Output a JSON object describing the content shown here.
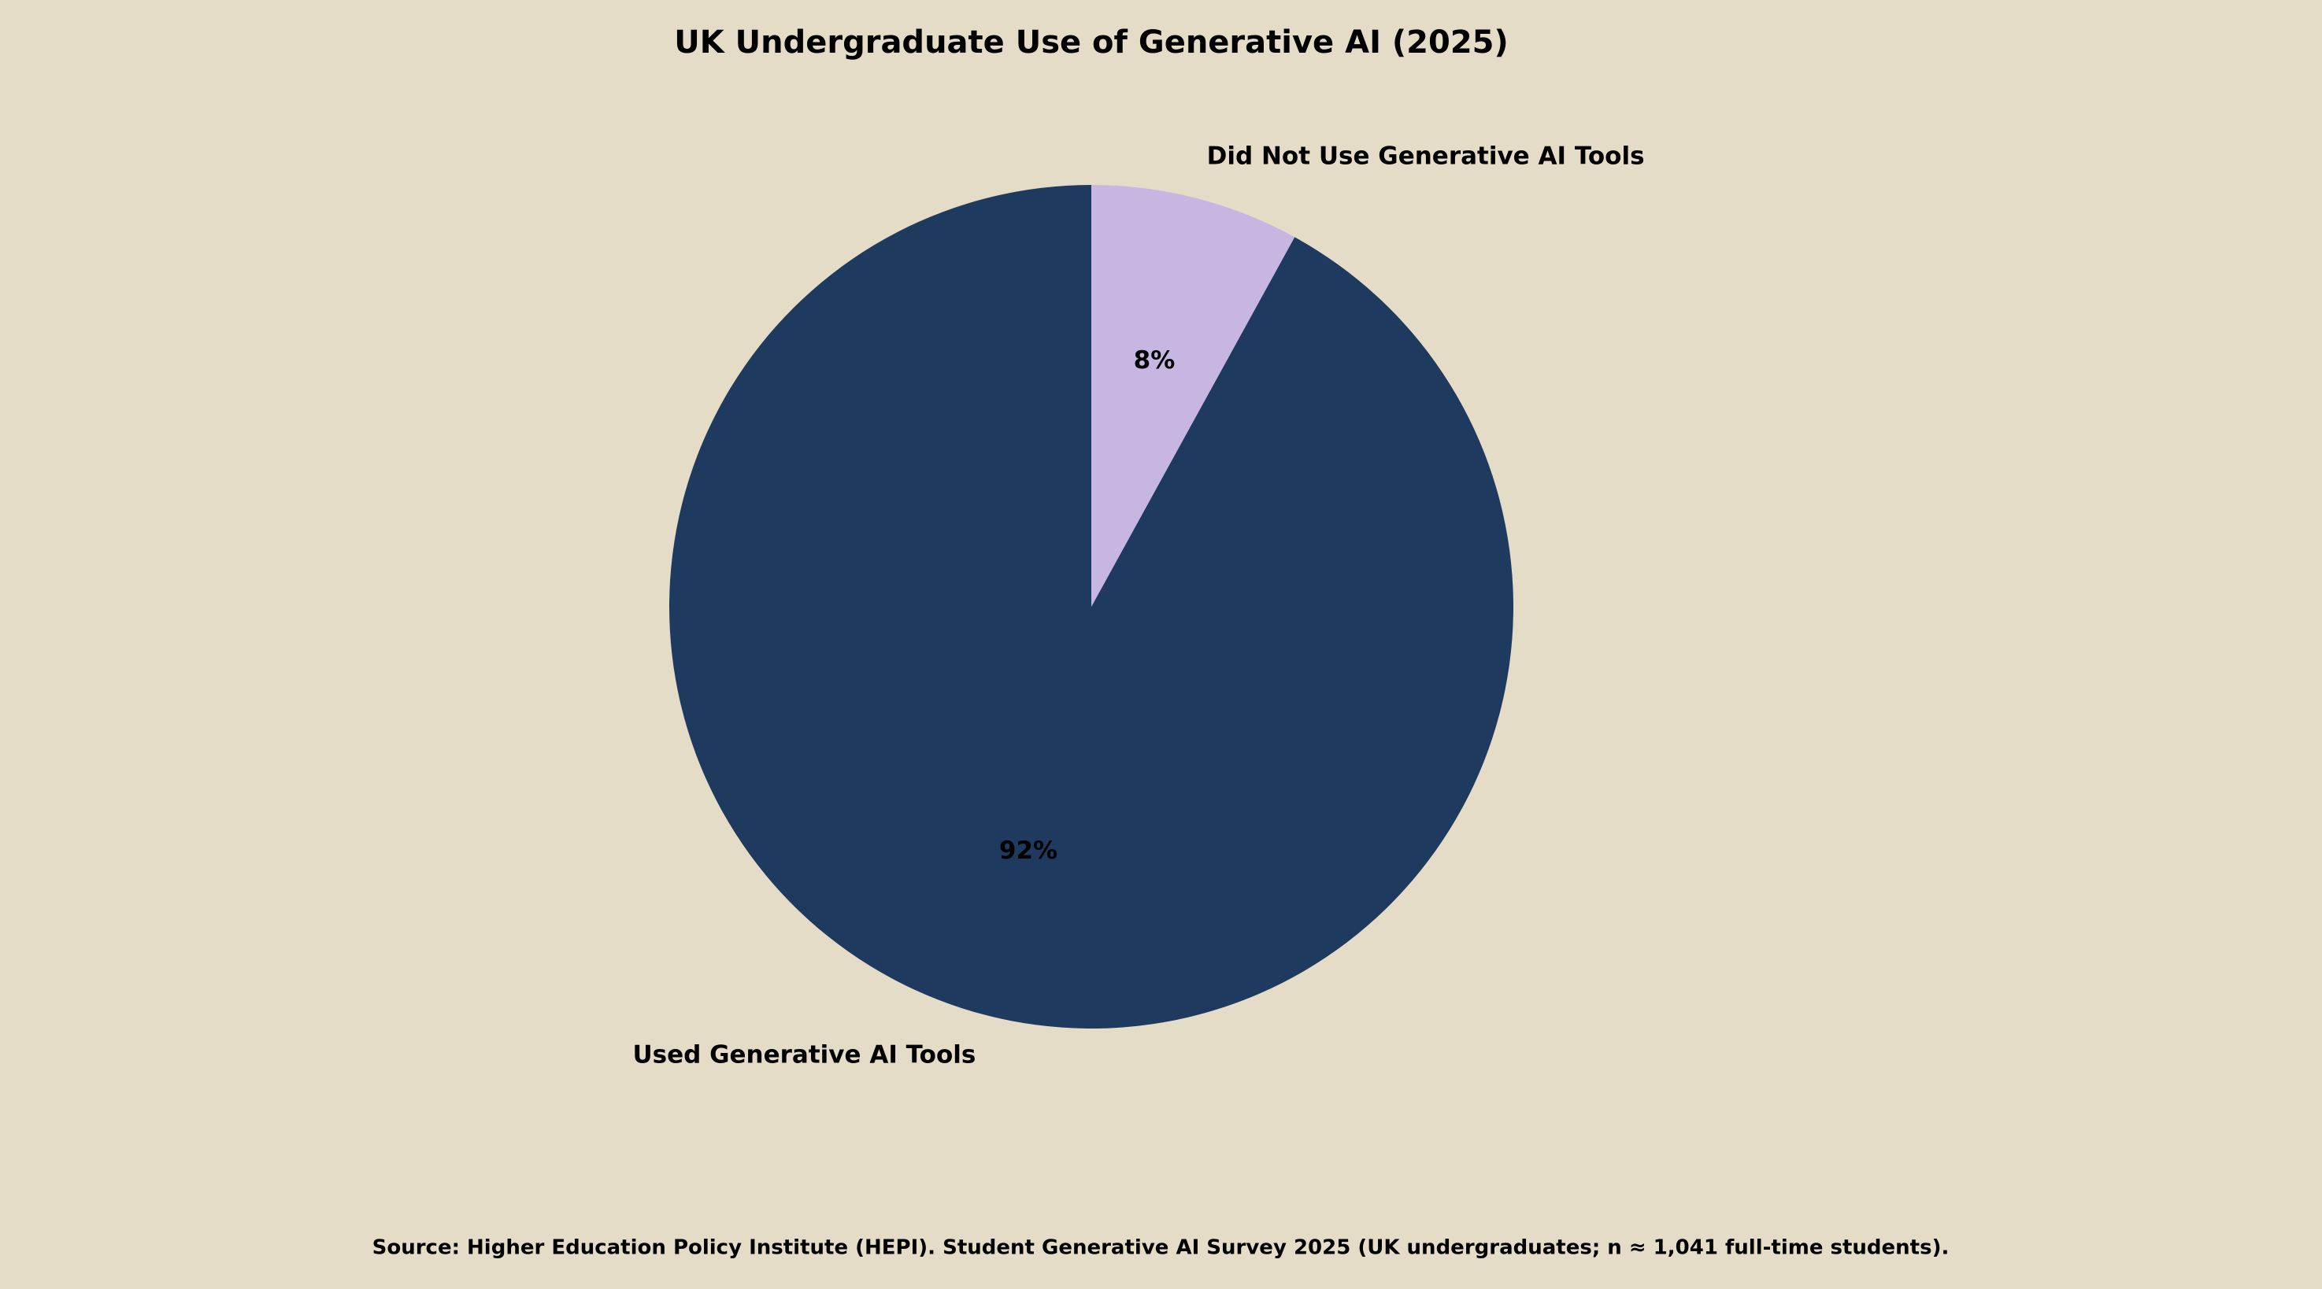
{
  "chart_data": {
    "type": "pie",
    "title": "UK Undergraduate Use of Generative AI (2025)",
    "categories": [
      "Used Generative AI Tools",
      "Did Not Use Generative AI Tools"
    ],
    "values": [
      92,
      8
    ],
    "value_labels": [
      "92%",
      "8%"
    ],
    "colors": [
      "#1f3a5f",
      "#c8b6e2"
    ],
    "source": "Source: Higher Education Policy Institute (HEPI). Student Generative AI Survey 2025 (UK undergraduates; n ≈ 1,041 full-time students)."
  }
}
